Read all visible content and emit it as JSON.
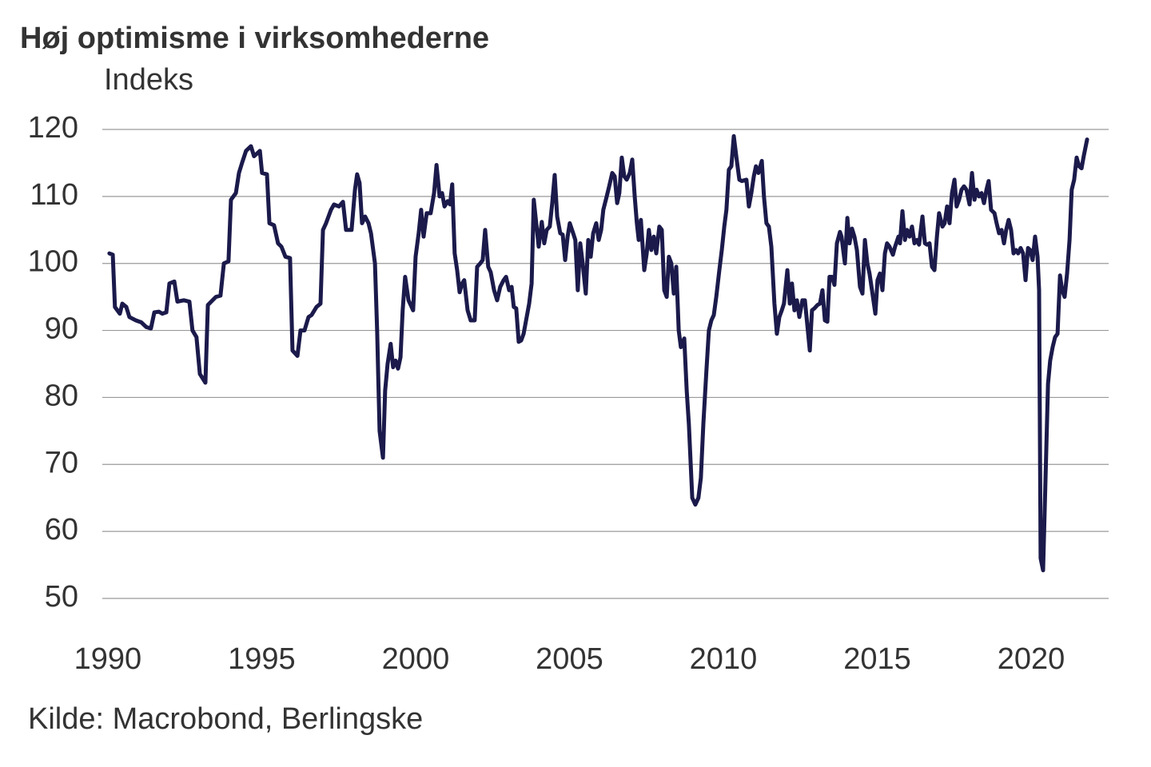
{
  "chart_data": {
    "type": "line",
    "title": "Høj optimisme i virksomhederne",
    "ylabel": "Indeks",
    "source": "Kilde: Macrobond, Berlingske",
    "xlim": [
      1989.82,
      2022.52
    ],
    "ylim": [
      50,
      120
    ],
    "xticks": [
      1990,
      1995,
      2000,
      2005,
      2010,
      2015,
      2020
    ],
    "yticks": [
      50,
      60,
      70,
      80,
      90,
      100,
      110,
      120
    ],
    "grid": true,
    "series": [
      {
        "color": "#1b1a4b",
        "x": [
          1990.05,
          1990.16,
          1990.23,
          1990.39,
          1990.47,
          1990.6,
          1990.7,
          1990.91,
          1991.09,
          1991.25,
          1991.4,
          1991.51,
          1991.66,
          1991.77,
          1991.9,
          1992.0,
          1992.16,
          1992.26,
          1992.47,
          1992.65,
          1992.75,
          1992.88,
          1992.99,
          1993.17,
          1993.25,
          1993.51,
          1993.66,
          1993.77,
          1993.92,
          1994.0,
          1994.16,
          1994.26,
          1994.36,
          1994.49,
          1994.65,
          1994.75,
          1994.94,
          1995.01,
          1995.17,
          1995.25,
          1995.4,
          1995.53,
          1995.64,
          1995.77,
          1995.92,
          1996.0,
          1996.16,
          1996.26,
          1996.39,
          1996.52,
          1996.62,
          1996.78,
          1996.91,
          1996.99,
          1997.09,
          1997.25,
          1997.35,
          1997.51,
          1997.64,
          1997.74,
          1997.92,
          1998.03,
          1998.1,
          1998.18,
          1998.26,
          1998.36,
          1998.47,
          1998.55,
          1998.68,
          1998.75,
          1998.83,
          1998.94,
          1999.01,
          1999.09,
          1999.19,
          1999.27,
          1999.35,
          1999.43,
          1999.51,
          1999.58,
          1999.66,
          1999.77,
          1999.92,
          2000.0,
          2000.1,
          2000.18,
          2000.26,
          2000.36,
          2000.49,
          2000.6,
          2000.68,
          2000.78,
          2000.86,
          2000.94,
          2001.04,
          2001.12,
          2001.19,
          2001.27,
          2001.35,
          2001.43,
          2001.51,
          2001.58,
          2001.69,
          2001.79,
          2001.92,
          2002.0,
          2002.1,
          2002.18,
          2002.26,
          2002.36,
          2002.44,
          2002.55,
          2002.65,
          2002.75,
          2002.86,
          2002.94,
          2003.04,
          2003.12,
          2003.19,
          2003.27,
          2003.35,
          2003.43,
          2003.51,
          2003.61,
          2003.69,
          2003.77,
          2003.84,
          2003.92,
          2004.0,
          2004.1,
          2004.18,
          2004.26,
          2004.36,
          2004.44,
          2004.52,
          2004.6,
          2004.7,
          2004.78,
          2004.86,
          2004.94,
          2005.01,
          2005.12,
          2005.19,
          2005.27,
          2005.35,
          2005.43,
          2005.53,
          2005.61,
          2005.69,
          2005.77,
          2005.87,
          2005.95,
          2006.03,
          2006.1,
          2006.21,
          2006.29,
          2006.39,
          2006.47,
          2006.55,
          2006.62,
          2006.7,
          2006.78,
          2006.86,
          2006.96,
          2007.04,
          2007.12,
          2007.19,
          2007.25,
          2007.32,
          2007.43,
          2007.51,
          2007.58,
          2007.66,
          2007.74,
          2007.82,
          2007.92,
          2008.0,
          2008.08,
          2008.16,
          2008.23,
          2008.31,
          2008.39,
          2008.47,
          2008.55,
          2008.62,
          2008.73,
          2008.81,
          2008.88,
          2008.99,
          2009.09,
          2009.19,
          2009.27,
          2009.35,
          2009.45,
          2009.53,
          2009.61,
          2009.69,
          2009.77,
          2009.87,
          2009.95,
          2010.03,
          2010.1,
          2010.18,
          2010.26,
          2010.34,
          2010.42,
          2010.52,
          2010.6,
          2010.75,
          2010.83,
          2010.91,
          2010.99,
          2011.06,
          2011.14,
          2011.25,
          2011.32,
          2011.4,
          2011.48,
          2011.56,
          2011.66,
          2011.74,
          2011.82,
          2011.9,
          2011.97,
          2012.08,
          2012.16,
          2012.23,
          2012.31,
          2012.39,
          2012.47,
          2012.57,
          2012.65,
          2012.81,
          2012.88,
          2012.96,
          2013.06,
          2013.14,
          2013.22,
          2013.3,
          2013.38,
          2013.45,
          2013.53,
          2013.61,
          2013.69,
          2013.79,
          2013.84,
          2013.95,
          2014.03,
          2014.1,
          2014.18,
          2014.26,
          2014.34,
          2014.44,
          2014.52,
          2014.6,
          2014.68,
          2014.75,
          2014.83,
          2014.94,
          2015.01,
          2015.09,
          2015.17,
          2015.25,
          2015.32,
          2015.4,
          2015.51,
          2015.58,
          2015.69,
          2015.74,
          2015.82,
          2015.9,
          2015.97,
          2016.05,
          2016.13,
          2016.21,
          2016.29,
          2016.36,
          2016.47,
          2016.55,
          2016.62,
          2016.7,
          2016.78,
          2016.86,
          2016.94,
          2017.01,
          2017.12,
          2017.19,
          2017.27,
          2017.35,
          2017.43,
          2017.51,
          2017.58,
          2017.66,
          2017.74,
          2017.82,
          2017.9,
          2018.0,
          2018.08,
          2018.16,
          2018.23,
          2018.31,
          2018.39,
          2018.47,
          2018.55,
          2018.62,
          2018.7,
          2018.81,
          2018.88,
          2018.96,
          2019.04,
          2019.12,
          2019.19,
          2019.27,
          2019.35,
          2019.43,
          2019.51,
          2019.58,
          2019.66,
          2019.74,
          2019.82,
          2019.9,
          2019.97,
          2020.05,
          2020.13,
          2020.21,
          2020.26,
          2020.31,
          2020.39,
          2020.47,
          2020.55,
          2020.62,
          2020.7,
          2020.78,
          2020.86,
          2020.94,
          2021.01,
          2021.09,
          2021.17,
          2021.25,
          2021.32,
          2021.4,
          2021.48,
          2021.56,
          2021.64,
          2021.71,
          2021.82
        ],
        "values": [
          101.5,
          101.3,
          93.5,
          92.5,
          94,
          93.5,
          92,
          91.5,
          91.2,
          90.5,
          90.3,
          92.7,
          92.8,
          92.5,
          92.7,
          97,
          97.3,
          94.3,
          94.5,
          94.3,
          90,
          89,
          83.5,
          82.2,
          93.8,
          95,
          95.2,
          100,
          100.3,
          109.5,
          110.5,
          113.5,
          115,
          116.8,
          117.5,
          116,
          116.8,
          113.5,
          113.3,
          106,
          105.7,
          103,
          102.5,
          101,
          100.8,
          87,
          86.2,
          90,
          90,
          92,
          92.3,
          93.5,
          94,
          105,
          106,
          108,
          108.8,
          108.5,
          109.2,
          105,
          105,
          111,
          113.3,
          112,
          106,
          107,
          106,
          104.5,
          100,
          90,
          75,
          71,
          81,
          85,
          88,
          84.5,
          85.5,
          84.3,
          86,
          93,
          98,
          94.5,
          93,
          101,
          104.5,
          108,
          104,
          107.5,
          107.5,
          110.5,
          114.7,
          110,
          110.5,
          108.5,
          109.3,
          108.8,
          111.8,
          101.5,
          99,
          95.7,
          97,
          97.5,
          93,
          91.5,
          91.5,
          99.5,
          100,
          100.5,
          105,
          99.5,
          98.7,
          96,
          94.5,
          96.5,
          97.5,
          98,
          96,
          96.5,
          93.5,
          93.3,
          88.3,
          88.5,
          89.5,
          92,
          94,
          97,
          109.5,
          106,
          102.5,
          106.2,
          103,
          105,
          105.5,
          109,
          113.2,
          107,
          104.5,
          104.3,
          100.5,
          104,
          106,
          104.5,
          103.5,
          96,
          103,
          100,
          95.5,
          103.5,
          101,
          104.5,
          106,
          103.5,
          105,
          108,
          110,
          111.5,
          113.5,
          113,
          109,
          110.5,
          115.8,
          113,
          112.5,
          113.5,
          115.5,
          110,
          106,
          103.5,
          106.5,
          99,
          101.5,
          105,
          102,
          104,
          101.5,
          105.5,
          105,
          96,
          95,
          101,
          100,
          95.5,
          99.5,
          90,
          87.5,
          88.8,
          81,
          76,
          65,
          64,
          65,
          68,
          76,
          84,
          90,
          91.5,
          92.3,
          95,
          99,
          102,
          105.5,
          108,
          114,
          114.5,
          119,
          116,
          112.5,
          112.3,
          112.5,
          108.5,
          110.5,
          113,
          114.5,
          113.5,
          115.3,
          110,
          106,
          105.5,
          102.5,
          94,
          89.5,
          92,
          93,
          94,
          99,
          94,
          97,
          93,
          94.5,
          92,
          94.5,
          94.5,
          87,
          93,
          93.3,
          93.8,
          94,
          96,
          91.5,
          91.3,
          98,
          98,
          96.8,
          103,
          104.7,
          104,
          100,
          106.8,
          103,
          105.2,
          104,
          102,
          96.5,
          95.5,
          103.5,
          100,
          98.5,
          96,
          92.5,
          97.5,
          98.5,
          96,
          101.5,
          103,
          102.5,
          101.3,
          102.5,
          104,
          103,
          107.8,
          103.5,
          105,
          104,
          105.5,
          103,
          103.5,
          102.8,
          107,
          103,
          102.8,
          103,
          99.5,
          99,
          104,
          107.5,
          105.5,
          106,
          108.5,
          106,
          110.5,
          112.5,
          108.5,
          109.5,
          111,
          111.5,
          111,
          108.8,
          113.5,
          109.5,
          111,
          110,
          110.5,
          109,
          111,
          112.3,
          108,
          107.5,
          106,
          104.5,
          105,
          103,
          105,
          106.5,
          105,
          101.5,
          102,
          101.5,
          102.3,
          101.5,
          97.5,
          102.3,
          102,
          100.5,
          104,
          101,
          96,
          56,
          54.2,
          68,
          82,
          85.5,
          87.5,
          89,
          89.5,
          98.2,
          96,
          95,
          98.5,
          103.5,
          111,
          112.5,
          115.8,
          114.5,
          114.2,
          116,
          118.5
        ]
      }
    ]
  }
}
